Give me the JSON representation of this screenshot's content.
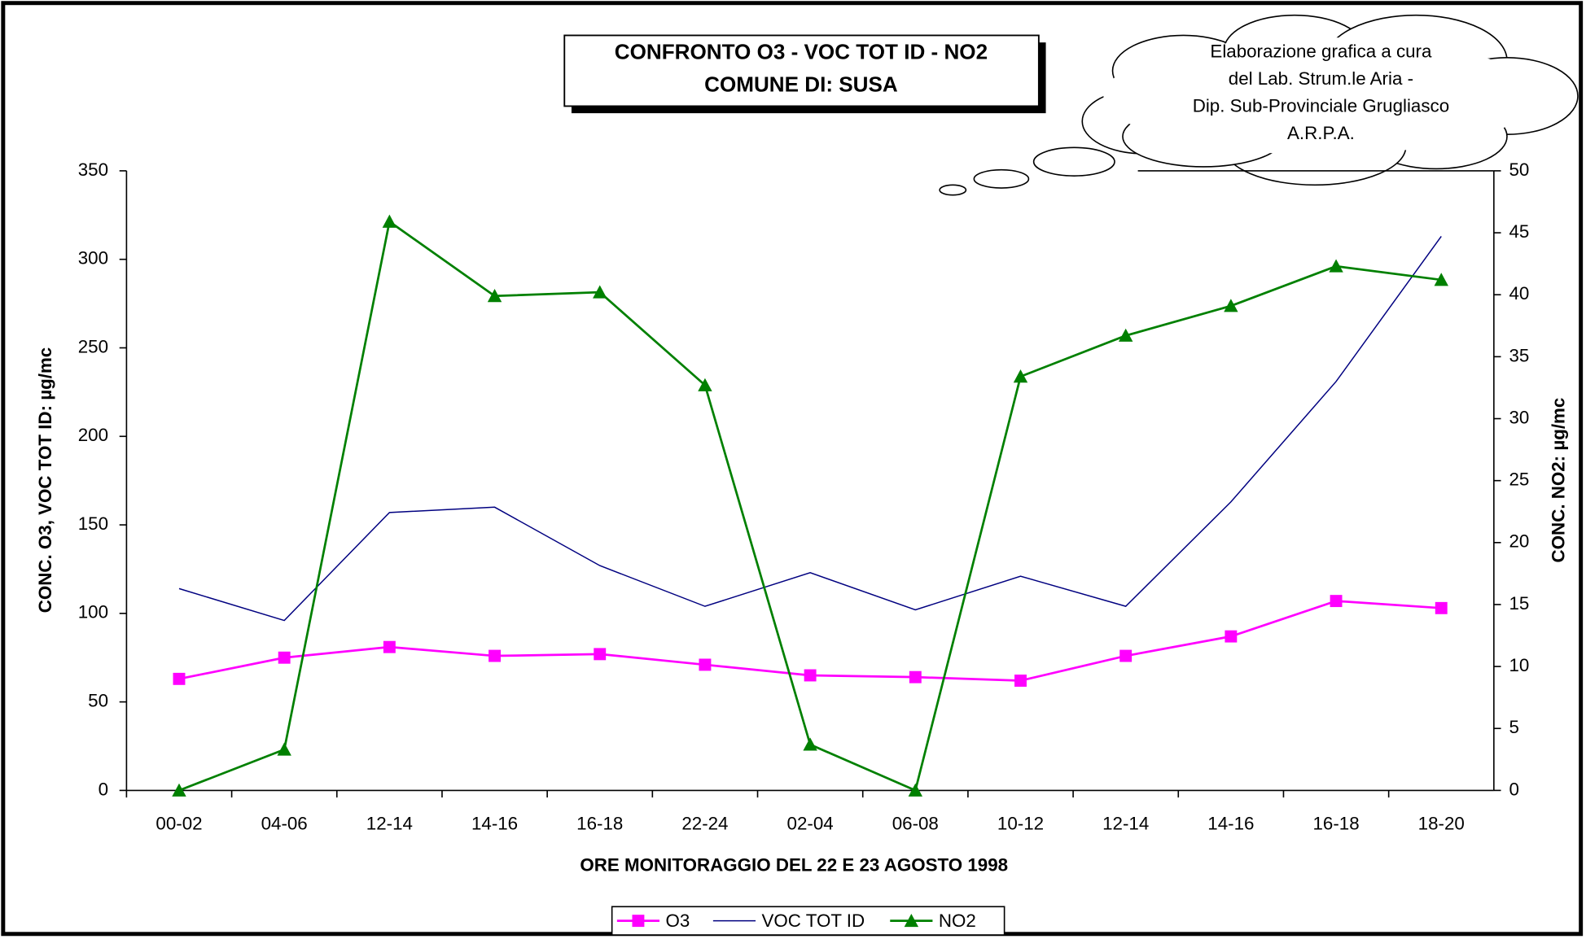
{
  "chart_data": {
    "type": "line",
    "title": [
      "CONFRONTO O3 - VOC TOT ID - NO2",
      "COMUNE DI: SUSA"
    ],
    "annotation": [
      "Elaborazione grafica a cura",
      "del Lab. Strum.le Aria -",
      "Dip. Sub-Provinciale  Grugliasco",
      "A.R.P.A."
    ],
    "x_label": "ORE MONITORAGGIO DEL 22 E 23 AGOSTO 1998",
    "y_label": "CONC. O3, VOC TOT ID: µg/mc",
    "y2_label": "CONC. NO2: µg/mc",
    "categories": [
      "00-02",
      "04-06",
      "12-14",
      "14-16",
      "16-18",
      "22-24",
      "02-04",
      "06-08",
      "10-12",
      "12-14",
      "14-16",
      "16-18",
      "18-20"
    ],
    "series": [
      {
        "name": "O3",
        "color": "#ff00ff",
        "marker": "square",
        "values": [
          63,
          75,
          81,
          76,
          77,
          71,
          65,
          64,
          62,
          76,
          87,
          107,
          103
        ]
      },
      {
        "name": "VOC TOT ID",
        "color": "#000080",
        "marker": "none",
        "values": [
          114,
          96,
          157,
          160,
          127,
          104,
          123,
          102,
          121,
          104,
          163,
          231,
          313
        ]
      },
      {
        "name": "NO2",
        "color": "#008000",
        "marker": "triangle",
        "axis": "y2",
        "values": [
          0,
          3.3,
          45.9,
          39.9,
          40.2,
          32.7,
          3.7,
          0,
          33.4,
          36.7,
          39.1,
          42.3,
          41.2
        ]
      }
    ],
    "ylim": [
      0,
      350
    ],
    "yticks": [
      0,
      50,
      100,
      150,
      200,
      250,
      300,
      350
    ],
    "y2lim": [
      0,
      50
    ],
    "y2ticks": [
      0,
      5,
      10,
      15,
      20,
      25,
      30,
      35,
      40,
      45,
      50
    ],
    "grid": false,
    "legend": "bottom"
  }
}
